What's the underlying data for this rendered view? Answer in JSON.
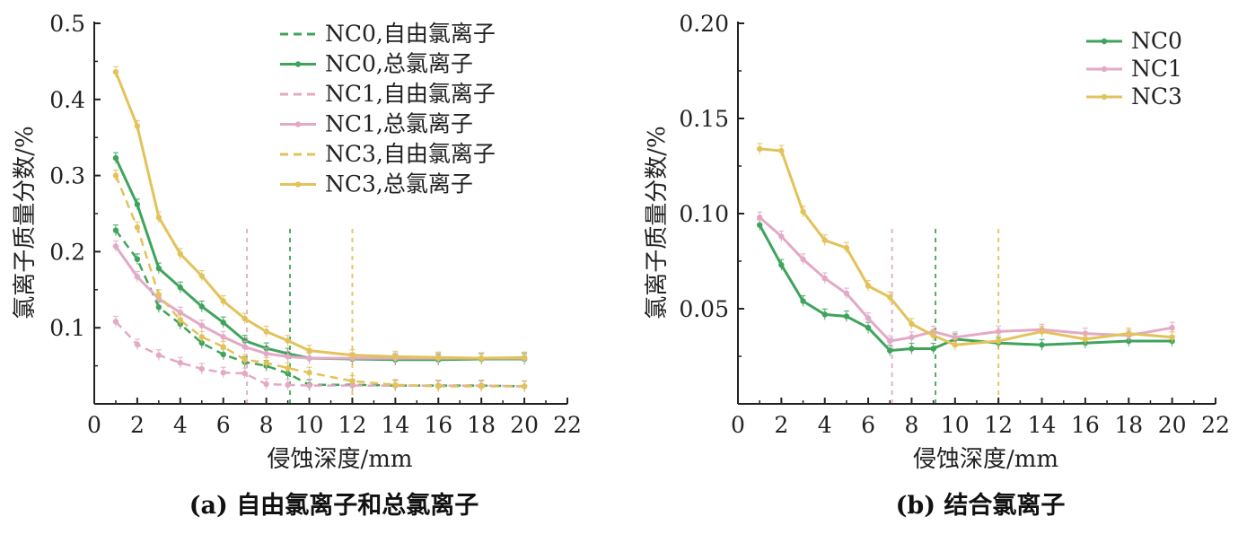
{
  "colors": {
    "NC0": "#3fa45b",
    "NC1": "#e3a9c6",
    "NC3": "#e3c25a",
    "axis": "#222222"
  },
  "chart_data": [
    {
      "type": "line",
      "caption": "(a) 自由氯离子和总氯离子",
      "xlabel": "侵蚀深度/mm",
      "ylabel": "氯离子质量分数/%",
      "xlim": [
        0,
        22
      ],
      "ylim": [
        0,
        0.5
      ],
      "xticks": [
        "0",
        "2",
        "4",
        "6",
        "8",
        "10",
        "12",
        "14",
        "16",
        "18",
        "20",
        "22"
      ],
      "yticks": [
        "0.1",
        "0.2",
        "0.3",
        "0.4",
        "0.5"
      ],
      "ref_lines": [
        {
          "x": 7.1,
          "color_key": "NC1"
        },
        {
          "x": 9.1,
          "color_key": "NC0"
        },
        {
          "x": 12,
          "color_key": "NC3"
        }
      ],
      "legend_position": "top-right",
      "series": [
        {
          "name": "NC0,自由氯离子",
          "color_key": "NC0",
          "dashed": true,
          "x": [
            1,
            2,
            3,
            4,
            5,
            6,
            7,
            8,
            9,
            10,
            12,
            14,
            16,
            18,
            20
          ],
          "y": [
            0.228,
            0.19,
            0.127,
            0.105,
            0.08,
            0.065,
            0.055,
            0.05,
            0.04,
            0.025,
            0.025,
            0.024,
            0.024,
            0.024,
            0.023
          ]
        },
        {
          "name": "NC0,总氯离子",
          "color_key": "NC0",
          "dashed": false,
          "x": [
            1,
            2,
            3,
            4,
            5,
            6,
            7,
            8,
            9,
            10,
            12,
            14,
            16,
            18,
            20
          ],
          "y": [
            0.323,
            0.262,
            0.178,
            0.153,
            0.128,
            0.107,
            0.083,
            0.073,
            0.066,
            0.06,
            0.059,
            0.058,
            0.058,
            0.059,
            0.059
          ]
        },
        {
          "name": "NC1,自由氯离子",
          "color_key": "NC1",
          "dashed": true,
          "x": [
            1,
            2,
            3,
            4,
            5,
            6,
            7,
            8,
            9,
            10,
            12,
            14,
            16,
            18,
            20
          ],
          "y": [
            0.108,
            0.078,
            0.064,
            0.054,
            0.046,
            0.041,
            0.04,
            0.026,
            0.025,
            0.024,
            0.024,
            0.024,
            0.024,
            0.024,
            0.023
          ]
        },
        {
          "name": "NC1,总氯离子",
          "color_key": "NC1",
          "dashed": false,
          "x": [
            1,
            2,
            3,
            4,
            5,
            6,
            7,
            8,
            9,
            10,
            12,
            14,
            16,
            18,
            20
          ],
          "y": [
            0.207,
            0.167,
            0.138,
            0.12,
            0.103,
            0.088,
            0.075,
            0.066,
            0.062,
            0.06,
            0.06,
            0.06,
            0.06,
            0.06,
            0.06
          ]
        },
        {
          "name": "NC3,自由氯离子",
          "color_key": "NC3",
          "dashed": true,
          "x": [
            1,
            2,
            3,
            4,
            5,
            6,
            7,
            8,
            9,
            10,
            12,
            14,
            16,
            18,
            20
          ],
          "y": [
            0.3,
            0.232,
            0.143,
            0.11,
            0.088,
            0.075,
            0.058,
            0.054,
            0.047,
            0.041,
            0.03,
            0.025,
            0.023,
            0.023,
            0.023
          ]
        },
        {
          "name": "NC3,总氯离子",
          "color_key": "NC3",
          "dashed": false,
          "x": [
            1,
            2,
            3,
            4,
            5,
            6,
            7,
            8,
            9,
            10,
            12,
            14,
            16,
            18,
            20
          ],
          "y": [
            0.436,
            0.365,
            0.245,
            0.197,
            0.168,
            0.135,
            0.112,
            0.095,
            0.083,
            0.07,
            0.064,
            0.062,
            0.061,
            0.06,
            0.061
          ]
        }
      ]
    },
    {
      "type": "line",
      "caption": "(b) 结合氯离子",
      "xlabel": "侵蚀深度/mm",
      "ylabel": "氯离子质量分数/%",
      "xlim": [
        0,
        22
      ],
      "ylim": [
        0,
        0.2
      ],
      "xticks": [
        "0",
        "2",
        "4",
        "6",
        "8",
        "10",
        "12",
        "14",
        "16",
        "18",
        "20",
        "22"
      ],
      "yticks": [
        "0.05",
        "0.10",
        "0.15",
        "0.20"
      ],
      "ref_lines": [
        {
          "x": 7.1,
          "color_key": "NC1"
        },
        {
          "x": 9.1,
          "color_key": "NC0"
        },
        {
          "x": 12,
          "color_key": "NC3"
        }
      ],
      "legend_position": "top-right",
      "series": [
        {
          "name": "NC0",
          "color_key": "NC0",
          "dashed": false,
          "x": [
            1,
            2,
            3,
            4,
            5,
            6,
            7,
            8,
            9,
            10,
            12,
            14,
            16,
            18,
            20
          ],
          "y": [
            0.094,
            0.073,
            0.054,
            0.047,
            0.046,
            0.04,
            0.028,
            0.029,
            0.029,
            0.034,
            0.032,
            0.031,
            0.032,
            0.033,
            0.033
          ]
        },
        {
          "name": "NC1",
          "color_key": "NC1",
          "dashed": false,
          "x": [
            1,
            2,
            3,
            4,
            5,
            6,
            7,
            8,
            9,
            10,
            12,
            14,
            16,
            18,
            20
          ],
          "y": [
            0.098,
            0.088,
            0.076,
            0.066,
            0.058,
            0.045,
            0.033,
            0.035,
            0.038,
            0.035,
            0.038,
            0.039,
            0.037,
            0.036,
            0.04
          ]
        },
        {
          "name": "NC3",
          "color_key": "NC3",
          "dashed": false,
          "x": [
            1,
            2,
            3,
            4,
            5,
            6,
            7,
            8,
            9,
            10,
            12,
            14,
            16,
            18,
            20
          ],
          "y": [
            0.134,
            0.133,
            0.101,
            0.086,
            0.082,
            0.062,
            0.056,
            0.042,
            0.036,
            0.031,
            0.033,
            0.038,
            0.034,
            0.037,
            0.035
          ]
        }
      ]
    }
  ]
}
